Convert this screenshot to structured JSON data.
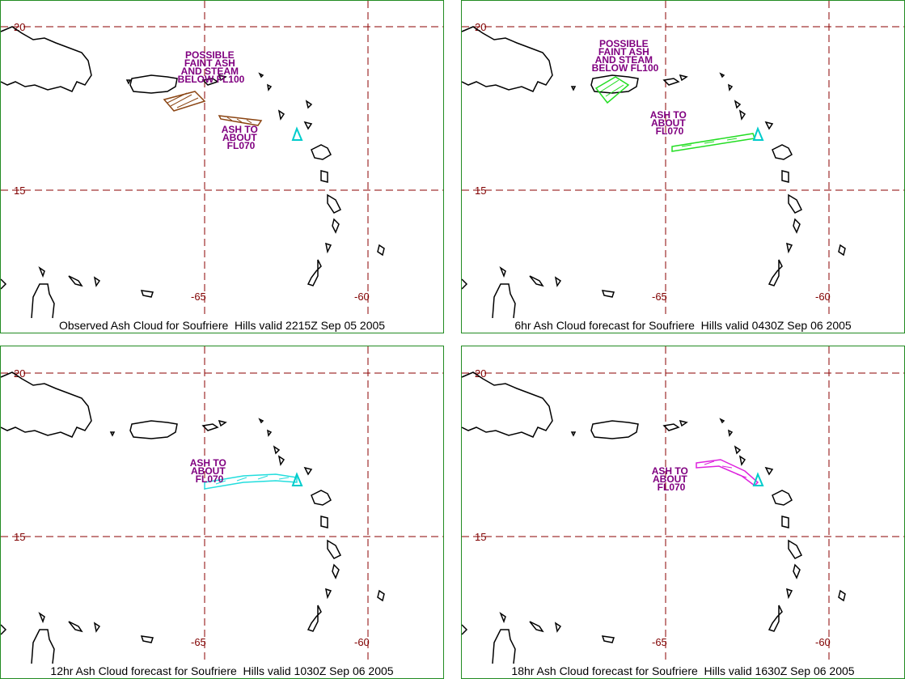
{
  "panels": [
    {
      "caption": "Observed Ash Cloud for Soufriere  Hills valid 2215Z Sep 05 2005",
      "ash_color": "#8b4513",
      "annotations": [
        [
          "POSSIBLE",
          "FAINT ASH",
          "AND STEAM",
          "BELOW FL100"
        ],
        [
          "ASH TO",
          "ABOUT",
          "FL070"
        ]
      ]
    },
    {
      "caption": "6hr Ash Cloud forecast for Soufriere  Hills valid 0430Z Sep 06 2005",
      "ash_color": "#22dd22",
      "annotations": [
        [
          "POSSIBLE",
          "FAINT ASH",
          "AND STEAM",
          "BELOW FL100"
        ],
        [
          "ASH TO",
          "ABOUT",
          "FL070"
        ]
      ]
    },
    {
      "caption": "12hr Ash Cloud forecast for Soufriere  Hills valid 1030Z Sep 06 2005",
      "ash_color": "#22dddd",
      "annotations": [
        [
          "ASH TO",
          "ABOUT",
          "FL070"
        ]
      ]
    },
    {
      "caption": "18hr Ash Cloud forecast for Soufriere  Hills valid 1630Z Sep 06 2005",
      "ash_color": "#dd22dd",
      "annotations": [
        [
          "ASH TO",
          "ABOUT",
          "FL070"
        ]
      ]
    }
  ],
  "grid_labels": {
    "lat_north": "20",
    "lat_south": "15",
    "lon_west": "-65",
    "lon_east": "-60"
  },
  "volcano_color": "#00cccc",
  "coast_color": "#000000",
  "grid_color": "#8b0000"
}
